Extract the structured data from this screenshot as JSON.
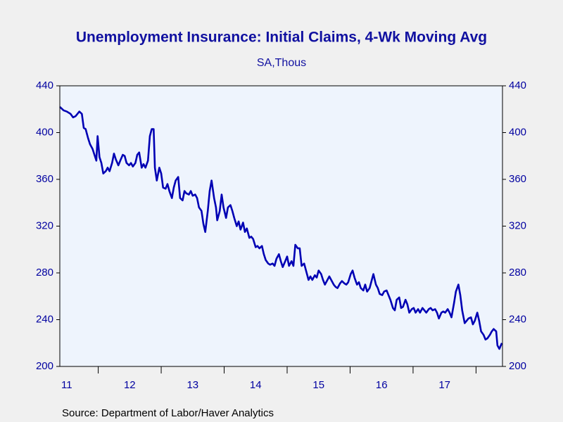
{
  "chart_data": {
    "type": "line",
    "title": "Unemployment Insurance: Initial Claims, 4-Wk Moving Avg",
    "subtitle": "SA,Thous",
    "source": "Source:  Department of Labor/Haver Analytics",
    "x": [
      2011.39,
      2011.45,
      2011.5,
      2011.56,
      2011.6,
      2011.64,
      2011.67,
      2011.7,
      2011.74,
      2011.77,
      2011.8,
      2011.84,
      2011.87,
      2011.91,
      2011.94,
      2011.97,
      2011.99,
      2012.02,
      2012.05,
      2012.08,
      2012.12,
      2012.15,
      2012.18,
      2012.22,
      2012.25,
      2012.28,
      2012.32,
      2012.35,
      2012.39,
      2012.42,
      2012.45,
      2012.49,
      2012.52,
      2012.55,
      2012.59,
      2012.62,
      2012.65,
      2012.69,
      2012.72,
      2012.75,
      2012.79,
      2012.82,
      2012.85,
      2012.88,
      2012.9,
      2012.93,
      2012.97,
      2013.0,
      2013.03,
      2013.07,
      2013.1,
      2013.13,
      2013.17,
      2013.2,
      2013.23,
      2013.27,
      2013.3,
      2013.34,
      2013.37,
      2013.4,
      2013.44,
      2013.47,
      2013.5,
      2013.54,
      2013.57,
      2013.6,
      2013.64,
      2013.67,
      2013.7,
      2013.74,
      2013.77,
      2013.8,
      2013.84,
      2013.87,
      2013.89,
      2013.93,
      2013.96,
      2013.99,
      2014.03,
      2014.06,
      2014.1,
      2014.13,
      2014.16,
      2014.2,
      2014.23,
      2014.26,
      2014.3,
      2014.33,
      2014.36,
      2014.4,
      2014.43,
      2014.46,
      2014.5,
      2014.53,
      2014.56,
      2014.6,
      2014.63,
      2014.66,
      2014.7,
      2014.73,
      2014.77,
      2014.8,
      2014.83,
      2014.87,
      2014.9,
      2014.93,
      2014.97,
      2015.0,
      2015.03,
      2015.07,
      2015.1,
      2015.13,
      2015.17,
      2015.2,
      2015.23,
      2015.27,
      2015.3,
      2015.34,
      2015.37,
      2015.4,
      2015.44,
      2015.47,
      2015.5,
      2015.54,
      2015.57,
      2015.6,
      2015.64,
      2015.67,
      2015.7,
      2015.74,
      2015.77,
      2015.8,
      2015.84,
      2015.87,
      2015.91,
      2015.94,
      2015.97,
      2016.01,
      2016.04,
      2016.07,
      2016.11,
      2016.14,
      2016.17,
      2016.21,
      2016.24,
      2016.27,
      2016.31,
      2016.34,
      2016.37,
      2016.41,
      2016.44,
      2016.47,
      2016.51,
      2016.54,
      2016.58,
      2016.61,
      2016.64,
      2016.68,
      2016.71,
      2016.74,
      2016.78,
      2016.81,
      2016.84,
      2016.88,
      2016.91,
      2016.94,
      2016.98,
      2017.01,
      2017.04,
      2017.08,
      2017.11,
      2017.15,
      2017.18,
      2017.21,
      2017.25,
      2017.28,
      2017.31,
      2017.35,
      2017.38,
      2017.41,
      2017.45,
      2017.48,
      2017.51,
      2017.55,
      2017.58,
      2017.61,
      2017.65,
      2017.68,
      2017.72,
      2017.75,
      2017.78,
      2017.82,
      2017.85,
      2017.88,
      2017.92,
      2017.95,
      2017.98,
      2018.02,
      2018.05,
      2018.08,
      2018.12,
      2018.15,
      2018.18,
      2018.22,
      2018.25,
      2018.28,
      2018.32,
      2018.34,
      2018.37,
      2018.41
    ],
    "series": [
      {
        "name": "Initial Claims, 4-Wk Moving Avg",
        "color": "#0000b4",
        "values": [
          422,
          419,
          418,
          416,
          413,
          414,
          416,
          418,
          416,
          404,
          403,
          395,
          390,
          386,
          381,
          376,
          397,
          379,
          374,
          365,
          367,
          370,
          367,
          374,
          382,
          377,
          372,
          376,
          381,
          380,
          374,
          372,
          374,
          371,
          374,
          381,
          383,
          370,
          373,
          370,
          376,
          397,
          403,
          403,
          370,
          359,
          370,
          365,
          353,
          352,
          356,
          350,
          344,
          353,
          359,
          362,
          344,
          342,
          350,
          348,
          347,
          350,
          346,
          347,
          344,
          336,
          333,
          322,
          315,
          333,
          350,
          359,
          344,
          336,
          325,
          333,
          347,
          336,
          327,
          336,
          338,
          333,
          327,
          320,
          324,
          317,
          323,
          315,
          318,
          310,
          311,
          309,
          302,
          303,
          301,
          303,
          296,
          291,
          288,
          287,
          288,
          286,
          292,
          296,
          290,
          285,
          290,
          294,
          286,
          290,
          286,
          304,
          301,
          301,
          286,
          288,
          282,
          274,
          277,
          274,
          278,
          276,
          282,
          279,
          274,
          270,
          274,
          277,
          274,
          270,
          268,
          267,
          271,
          273,
          271,
          270,
          272,
          279,
          282,
          276,
          270,
          272,
          267,
          265,
          270,
          264,
          267,
          273,
          279,
          270,
          267,
          262,
          261,
          264,
          265,
          261,
          257,
          250,
          248,
          257,
          259,
          250,
          251,
          257,
          253,
          246,
          249,
          250,
          246,
          249,
          246,
          250,
          248,
          246,
          249,
          250,
          248,
          249,
          246,
          241,
          246,
          247,
          246,
          249,
          246,
          242,
          254,
          264,
          270,
          261,
          248,
          237,
          239,
          241,
          242,
          236,
          239,
          246,
          239,
          230,
          227,
          223,
          224,
          227,
          230,
          232,
          230,
          218,
          215,
          220
        ]
      }
    ],
    "xlim": [
      2011.39,
      2018.42
    ],
    "xticks": [
      {
        "value": 2011.5,
        "label": "11"
      },
      {
        "value": 2012.5,
        "label": "12"
      },
      {
        "value": 2013.5,
        "label": "13"
      },
      {
        "value": 2014.5,
        "label": "14"
      },
      {
        "value": 2015.5,
        "label": "15"
      },
      {
        "value": 2016.5,
        "label": "16"
      },
      {
        "value": 2017.5,
        "label": "17"
      }
    ],
    "year_ticks": [
      2012,
      2013,
      2014,
      2015,
      2016,
      2017,
      2018
    ],
    "ylim": [
      200,
      440
    ],
    "yticks": [
      200,
      240,
      280,
      320,
      360,
      400,
      440
    ],
    "y2lim": [
      200,
      440
    ],
    "y2ticks": [
      200,
      240,
      280,
      320,
      360,
      400,
      440
    ],
    "grid": false
  }
}
